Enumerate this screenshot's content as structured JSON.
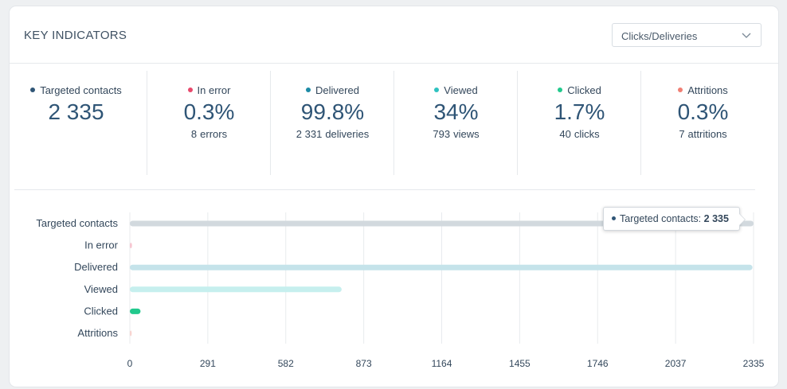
{
  "header": {
    "title": "KEY INDICATORS",
    "select_value": "Clicks/Deliveries"
  },
  "kpis": [
    {
      "label": "Targeted contacts",
      "value": "2 335",
      "sub_num": "",
      "sub_text": "",
      "color": "#2f5576"
    },
    {
      "label": "In error",
      "value": "0.3%",
      "sub_num": "8",
      "sub_text": "errors",
      "color": "#e8496c"
    },
    {
      "label": "Delivered",
      "value": "99.8%",
      "sub_num": "2 331",
      "sub_text": "deliveries",
      "color": "#1d8ba6"
    },
    {
      "label": "Viewed",
      "value": "34%",
      "sub_num": "793",
      "sub_text": "views",
      "color": "#2ec2c0"
    },
    {
      "label": "Clicked",
      "value": "1.7%",
      "sub_num": "40",
      "sub_text": "clicks",
      "color": "#22c98d"
    },
    {
      "label": "Attritions",
      "value": "0.3%",
      "sub_num": "7",
      "sub_text": "attritions",
      "color": "#f07f74"
    }
  ],
  "chart_data": {
    "type": "bar",
    "orientation": "horizontal",
    "categories": [
      "Targeted contacts",
      "In error",
      "Delivered",
      "Viewed",
      "Clicked",
      "Attritions"
    ],
    "values": [
      2335,
      8,
      2331,
      793,
      40,
      7
    ],
    "colors": [
      "#d2d9de",
      "#f7c5d0",
      "#c5e3ea",
      "#c6efee",
      "#22c98d",
      "#f9d3cf"
    ],
    "xticks": [
      "0",
      "291",
      "582",
      "873",
      "1164",
      "1455",
      "1746",
      "2037",
      "2335"
    ],
    "xlim": [
      0,
      2335
    ],
    "grid": true
  },
  "tooltip": {
    "label": "Targeted contacts:",
    "value": "2 335"
  }
}
